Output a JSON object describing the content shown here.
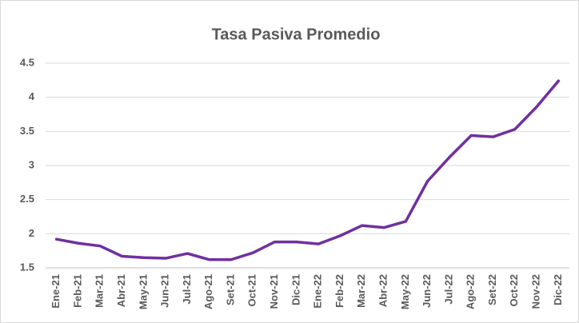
{
  "chart_data": {
    "type": "line",
    "title": "Tasa Pasiva Promedio",
    "categories": [
      "Ene-21",
      "Feb-21",
      "Mar-21",
      "Abr-21",
      "May-21",
      "Jun-21",
      "Jul-21",
      "Ago-21",
      "Set-21",
      "Oct-21",
      "Nov-21",
      "Dic-21",
      "Ene-22",
      "Feb-22",
      "Mar-22",
      "Abr-22",
      "May-22",
      "Jun-22",
      "Jul-22",
      "Ago-22",
      "Set-22",
      "Oct-22",
      "Nov-22",
      "Dic-22"
    ],
    "series": [
      {
        "name": "Tasa Pasiva Promedio",
        "color": "#7030a0",
        "values": [
          1.92,
          1.86,
          1.82,
          1.67,
          1.65,
          1.64,
          1.71,
          1.62,
          1.62,
          1.72,
          1.88,
          1.88,
          1.85,
          1.97,
          2.12,
          2.09,
          2.18,
          2.77,
          3.12,
          3.44,
          3.42,
          3.53,
          3.86,
          4.24
        ]
      }
    ],
    "ylim": [
      1.5,
      4.5
    ],
    "yticks": [
      1.5,
      2,
      2.5,
      3,
      3.5,
      4,
      4.5
    ],
    "grid": true
  }
}
